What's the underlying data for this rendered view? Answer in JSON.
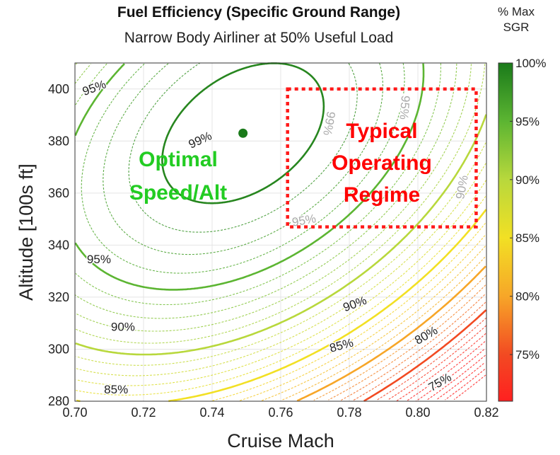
{
  "chart_data": {
    "type": "contour",
    "title": "Fuel Efficiency (Specific Ground Range)",
    "subtitle": "Narrow Body Airliner at 50% Useful Load",
    "xlabel": "Cruise Mach",
    "ylabel": "Altitude [100s ft]",
    "xlim": [
      0.7,
      0.82
    ],
    "ylim": [
      280,
      410
    ],
    "xticks": [
      "0.70",
      "0.72",
      "0.74",
      "0.76",
      "0.78",
      "0.80",
      "0.82"
    ],
    "yticks": [
      "280",
      "300",
      "320",
      "340",
      "360",
      "380",
      "400"
    ],
    "grid": true,
    "colorbar": {
      "title_line1": "% Max",
      "title_line2": "SGR",
      "range": [
        71,
        100
      ],
      "ticks": [
        "100%",
        "95%",
        "90%",
        "85%",
        "80%",
        "75%"
      ],
      "colors": {
        "100": "#1a7a1a",
        "95": "#5cb532",
        "90": "#b8d83c",
        "85": "#f2e024",
        "80": "#f7a628",
        "75": "#f24a22",
        "71": "#ff2020"
      }
    },
    "optimum": {
      "mach": 0.749,
      "alt": 383,
      "color": "#1a7a1a"
    },
    "contour_levels_labeled": [
      75,
      80,
      85,
      90,
      95,
      99
    ],
    "contour_labels": [
      {
        "text": "95%",
        "mach": 0.706,
        "alt": 399,
        "rot": -20
      },
      {
        "text": "99%",
        "mach": 0.737,
        "alt": 379,
        "rot": -25
      },
      {
        "text": "95%",
        "mach": 0.707,
        "alt": 333,
        "rot": 0
      },
      {
        "text": "90%",
        "mach": 0.782,
        "alt": 316,
        "rot": -20
      },
      {
        "text": "90%",
        "mach": 0.714,
        "alt": 307,
        "rot": 0
      },
      {
        "text": "85%",
        "mach": 0.778,
        "alt": 300,
        "rot": -15
      },
      {
        "text": "85%",
        "mach": 0.712,
        "alt": 283,
        "rot": 0
      },
      {
        "text": "80%",
        "mach": 0.803,
        "alt": 304,
        "rot": -30
      },
      {
        "text": "75%",
        "mach": 0.807,
        "alt": 286,
        "rot": -30
      },
      {
        "text": "99%",
        "mach": 0.773,
        "alt": 387,
        "rot": 100
      },
      {
        "text": "95%",
        "mach": 0.795,
        "alt": 393,
        "rot": 95
      },
      {
        "text": "90%",
        "mach": 0.814,
        "alt": 362,
        "rot": -80
      },
      {
        "text": "95%",
        "mach": 0.767,
        "alt": 348,
        "rot": -10
      }
    ],
    "annotations": [
      {
        "text_line1": "Optimal",
        "text_line2": "Speed/Alt",
        "color": "#22cc22"
      },
      {
        "text_line1": "Typical",
        "text_line2": "Operating",
        "text_line3": "Regime",
        "color": "#ff0000",
        "box": {
          "mach": [
            0.762,
            0.817
          ],
          "alt": [
            347,
            400
          ]
        }
      }
    ]
  }
}
